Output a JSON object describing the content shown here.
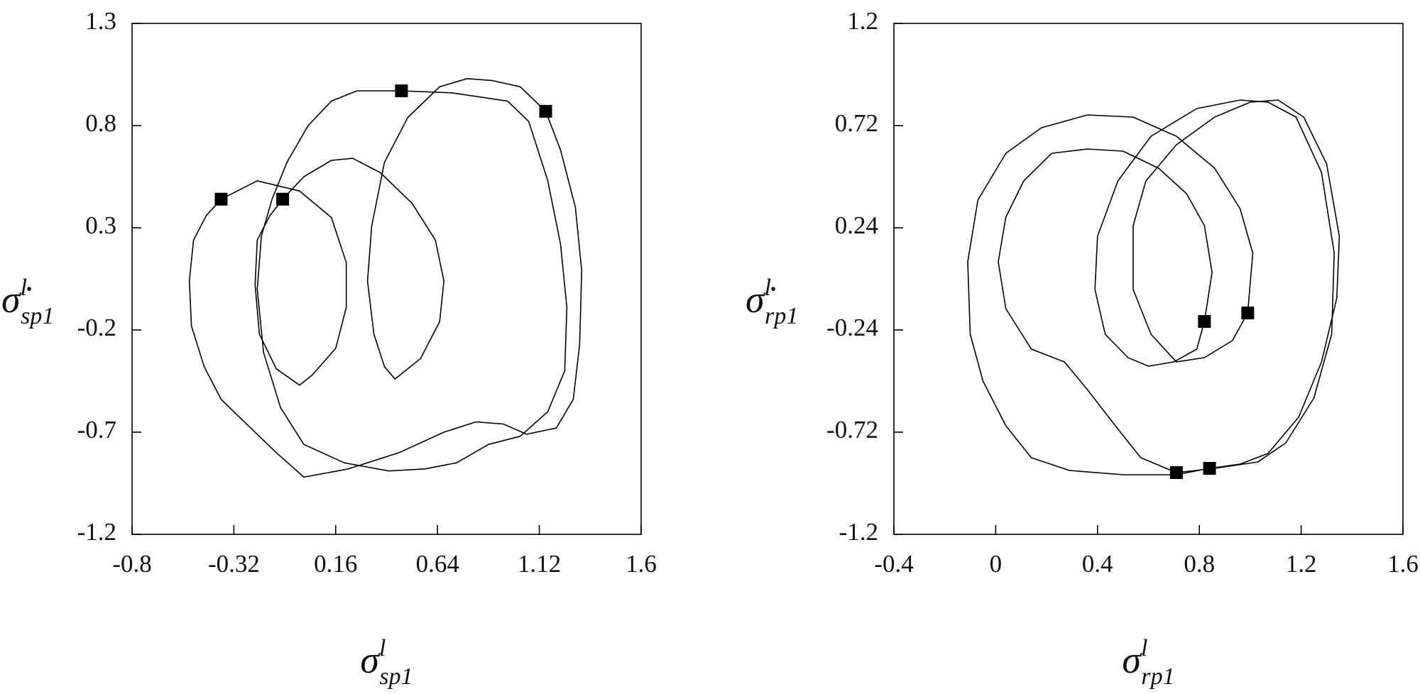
{
  "chart_data": [
    {
      "type": "line",
      "xlabel": {
        "symbol": "σ",
        "sup": "l",
        "sub": "sp1"
      },
      "ylabel": {
        "symbol": "σ̇",
        "sup": "l",
        "sub": "sp1"
      },
      "xlim": [
        -0.8,
        1.6
      ],
      "ylim": [
        -1.2,
        1.3
      ],
      "xticks": [
        -0.8,
        -0.32,
        0.16,
        0.64,
        1.12,
        1.6
      ],
      "yticks": [
        -1.2,
        -0.7,
        -0.2,
        0.3,
        0.8,
        1.3
      ],
      "series": [
        {
          "type": "line",
          "color": "#000000",
          "x": [
            -0.38,
            -0.21,
            -0.01,
            0.14,
            0.21,
            0.21,
            0.16,
            0.05,
            -0.01,
            -0.12,
            -0.2,
            -0.22,
            -0.21,
            -0.15,
            -0.09,
            0.01,
            0.14,
            0.24,
            0.37,
            0.52,
            0.63,
            0.67,
            0.65,
            0.56,
            0.44,
            0.39,
            0.34,
            0.31,
            0.33,
            0.39,
            0.5,
            0.65,
            0.78,
            0.9,
            1.03,
            1.15,
            1.22,
            1.29,
            1.32,
            1.31,
            1.28,
            1.2,
            1.06,
            0.95,
            0.82,
            0.67,
            0.46,
            0.22,
            0.01,
            -0.12,
            -0.25,
            -0.38,
            -0.46,
            -0.52,
            -0.53,
            -0.51,
            -0.45,
            -0.38,
            null,
            0.47,
            0.71,
            0.97,
            1.07,
            1.16,
            1.22,
            1.25,
            1.24,
            1.16,
            1.03,
            0.88,
            0.73,
            0.58,
            0.41,
            0.2,
            0.01,
            -0.1,
            -0.18,
            -0.21,
            -0.19,
            -0.14,
            -0.07,
            0.03,
            0.14,
            0.26,
            0.47
          ],
          "values": [
            0.44,
            0.53,
            0.48,
            0.35,
            0.13,
            -0.09,
            -0.29,
            -0.42,
            -0.47,
            -0.39,
            -0.22,
            0.02,
            0.24,
            0.36,
            0.44,
            0.55,
            0.63,
            0.64,
            0.57,
            0.42,
            0.24,
            0.04,
            -0.16,
            -0.34,
            -0.44,
            -0.38,
            -0.22,
            0.04,
            0.31,
            0.62,
            0.84,
            0.99,
            1.03,
            1.02,
            0.99,
            0.87,
            0.68,
            0.4,
            0.09,
            -0.27,
            -0.54,
            -0.68,
            -0.71,
            -0.66,
            -0.65,
            -0.7,
            -0.8,
            -0.88,
            -0.92,
            -0.8,
            -0.67,
            -0.54,
            -0.38,
            -0.18,
            0.04,
            0.24,
            0.36,
            0.44,
            null,
            0.97,
            0.96,
            0.92,
            0.82,
            0.53,
            0.22,
            -0.09,
            -0.4,
            -0.6,
            -0.72,
            -0.76,
            -0.85,
            -0.88,
            -0.89,
            -0.85,
            -0.76,
            -0.58,
            -0.31,
            0.0,
            0.26,
            0.44,
            0.62,
            0.8,
            0.92,
            0.97,
            0.97
          ]
        },
        {
          "type": "scatter",
          "marker": "square",
          "color": "#000000",
          "x": [
            -0.38,
            -0.09,
            0.47,
            1.15
          ],
          "values": [
            0.44,
            0.44,
            0.97,
            0.87
          ]
        }
      ]
    },
    {
      "type": "line",
      "xlabel": {
        "symbol": "σ",
        "sup": "l",
        "sub": "rp1"
      },
      "ylabel": {
        "symbol": "σ̇",
        "sup": "l",
        "sub": "rp1"
      },
      "xlim": [
        -0.4,
        1.6
      ],
      "ylim": [
        -1.2,
        1.2
      ],
      "xticks": [
        -0.4,
        0,
        0.4,
        0.8,
        1.2,
        1.6
      ],
      "yticks": [
        -1.2,
        -0.72,
        -0.24,
        0.24,
        0.72,
        1.2
      ],
      "series": [
        {
          "type": "line",
          "color": "#000000",
          "x": [
            0.22,
            0.11,
            0.04,
            0.01,
            0.04,
            0.14,
            0.27,
            0.36,
            0.47,
            0.57,
            0.71,
            0.86,
            1.03,
            1.14,
            1.25,
            1.32,
            1.33,
            1.28,
            1.18,
            1.07,
            0.96,
            0.79,
            0.61,
            0.48,
            0.4,
            0.39,
            0.43,
            0.52,
            0.6,
            0.7,
            0.79,
            0.82,
            0.85,
            0.82,
            0.75,
            0.64,
            0.5,
            0.36,
            0.22,
            null,
            0.99,
            1.01,
            0.96,
            0.86,
            0.71,
            0.54,
            0.36,
            0.18,
            0.04,
            -0.07,
            -0.11,
            -0.1,
            -0.05,
            0.04,
            0.14,
            0.29,
            0.5,
            0.71,
            0.84,
            0.96,
            1.07,
            1.19,
            1.28,
            1.34,
            1.35,
            1.3,
            1.21,
            1.11,
            1.0,
            0.86,
            0.71,
            0.59,
            0.54,
            0.54,
            0.61,
            0.71,
            0.82,
            0.93,
            0.99
          ],
          "values": [
            0.59,
            0.46,
            0.29,
            0.08,
            -0.14,
            -0.33,
            -0.39,
            -0.52,
            -0.69,
            -0.84,
            -0.91,
            -0.89,
            -0.86,
            -0.77,
            -0.56,
            -0.26,
            0.12,
            0.5,
            0.76,
            0.83,
            0.84,
            0.8,
            0.67,
            0.46,
            0.2,
            -0.05,
            -0.26,
            -0.37,
            -0.41,
            -0.39,
            -0.33,
            -0.2,
            0.03,
            0.25,
            0.4,
            0.52,
            0.6,
            0.61,
            0.59,
            null,
            -0.16,
            0.12,
            0.33,
            0.52,
            0.67,
            0.76,
            0.77,
            0.71,
            0.59,
            0.37,
            0.08,
            -0.26,
            -0.48,
            -0.69,
            -0.84,
            -0.9,
            -0.92,
            -0.92,
            -0.89,
            -0.87,
            -0.82,
            -0.65,
            -0.39,
            -0.09,
            0.2,
            0.54,
            0.76,
            0.84,
            0.83,
            0.76,
            0.63,
            0.46,
            0.25,
            -0.05,
            -0.26,
            -0.39,
            -0.37,
            -0.29,
            -0.16
          ]
        },
        {
          "type": "scatter",
          "marker": "square",
          "color": "#000000",
          "x": [
            0.82,
            0.99,
            0.71,
            0.84
          ],
          "values": [
            -0.2,
            -0.16,
            -0.91,
            -0.89
          ]
        }
      ]
    }
  ]
}
